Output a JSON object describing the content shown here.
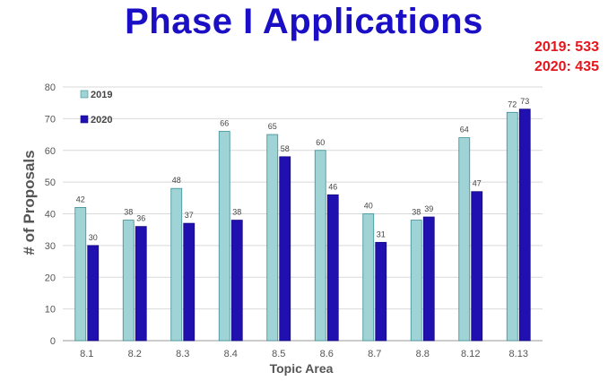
{
  "header": {
    "title": "Phase I Applications",
    "totals": [
      "2019: 533",
      "2020: 435"
    ]
  },
  "colors": {
    "title": "#1a0fc4",
    "totals": "#e8141b",
    "series_2019": "#9fd3d6",
    "series_2020": "#2010b0"
  },
  "chart_data": {
    "type": "bar",
    "title": "Phase I Applications",
    "xlabel": "Topic Area",
    "ylabel": "# of Proposals",
    "categories": [
      "8.1",
      "8.2",
      "8.3",
      "8.4",
      "8.5",
      "8.6",
      "8.7",
      "8.8",
      "8.12",
      "8.13"
    ],
    "series": [
      {
        "name": "2019",
        "color": "#9fd3d6",
        "values": [
          42,
          38,
          48,
          66,
          65,
          60,
          40,
          38,
          64,
          72
        ]
      },
      {
        "name": "2020",
        "color": "#2010b0",
        "values": [
          30,
          36,
          37,
          38,
          58,
          46,
          31,
          39,
          47,
          73
        ]
      }
    ],
    "ylim": [
      0,
      80
    ],
    "yticks": [
      0,
      10,
      20,
      30,
      40,
      50,
      60,
      70,
      80
    ],
    "grid": true,
    "legend": "top-left"
  }
}
